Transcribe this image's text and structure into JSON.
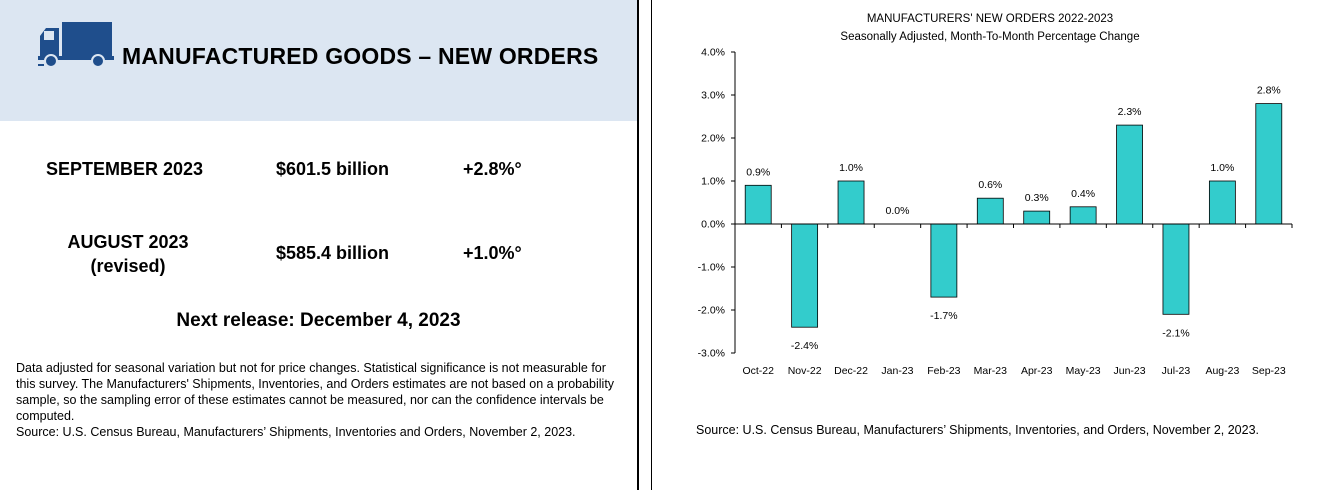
{
  "left": {
    "headline": "MANUFACTURED GOODS – NEW ORDERS",
    "rows": [
      {
        "period": "SEPTEMBER 2023",
        "value": "$601.5 billion",
        "change": "+2.8%°"
      },
      {
        "period": "AUGUST 2023",
        "period_sub": "(revised)",
        "value": "$585.4 billion",
        "change": "+1.0%°"
      }
    ],
    "next_release": "Next release: December 4, 2023",
    "note": "Data adjusted for seasonal variation but not for price changes. Statistical significance is not measurable for this survey.  The Manufacturers' Shipments, Inventories, and Orders estimates are not based on a probability sample, so the sampling error of these estimates cannot be measured, nor can the confidence intervals be computed.",
    "source": "Source: U.S. Census Bureau, Manufacturers’ Shipments, Inventories and Orders, November 2, 2023."
  },
  "chart_data": {
    "type": "bar",
    "title": "MANUFACTURERS' NEW ORDERS 2022-2023",
    "subtitle": "Seasonally Adjusted,  Month-To-Month Percentage Change",
    "categories": [
      "Oct-22",
      "Nov-22",
      "Dec-22",
      "Jan-23",
      "Feb-23",
      "Mar-23",
      "Apr-23",
      "May-23",
      "Jun-23",
      "Jul-23",
      "Aug-23",
      "Sep-23"
    ],
    "values": [
      0.9,
      -2.4,
      1.0,
      0.0,
      -1.7,
      0.6,
      0.3,
      0.4,
      2.3,
      -2.1,
      1.0,
      2.8
    ],
    "data_labels": [
      "0.9%",
      "-2.4%",
      "1.0%",
      "0.0%",
      "-1.7%",
      "0.6%",
      "0.3%",
      "0.4%",
      "2.3%",
      "-2.1%",
      "1.0%",
      "2.8%"
    ],
    "ylim": [
      -3.0,
      4.0
    ],
    "yticks": [
      4.0,
      3.0,
      2.0,
      1.0,
      0.0,
      -1.0,
      -2.0,
      -3.0
    ],
    "ytick_labels": [
      "4.0%",
      "3.0%",
      "2.0%",
      "1.0%",
      "0.0%",
      "-1.0%",
      "-2.0%",
      "-3.0%"
    ],
    "bar_color": "#33cccc",
    "grid": false,
    "source": "Source: U.S. Census Bureau, Manufacturers’ Shipments, Inventories, and Orders, November 2, 2023."
  },
  "colors": {
    "header_band": "#dce6f2",
    "truck": "#1f4e8c"
  }
}
